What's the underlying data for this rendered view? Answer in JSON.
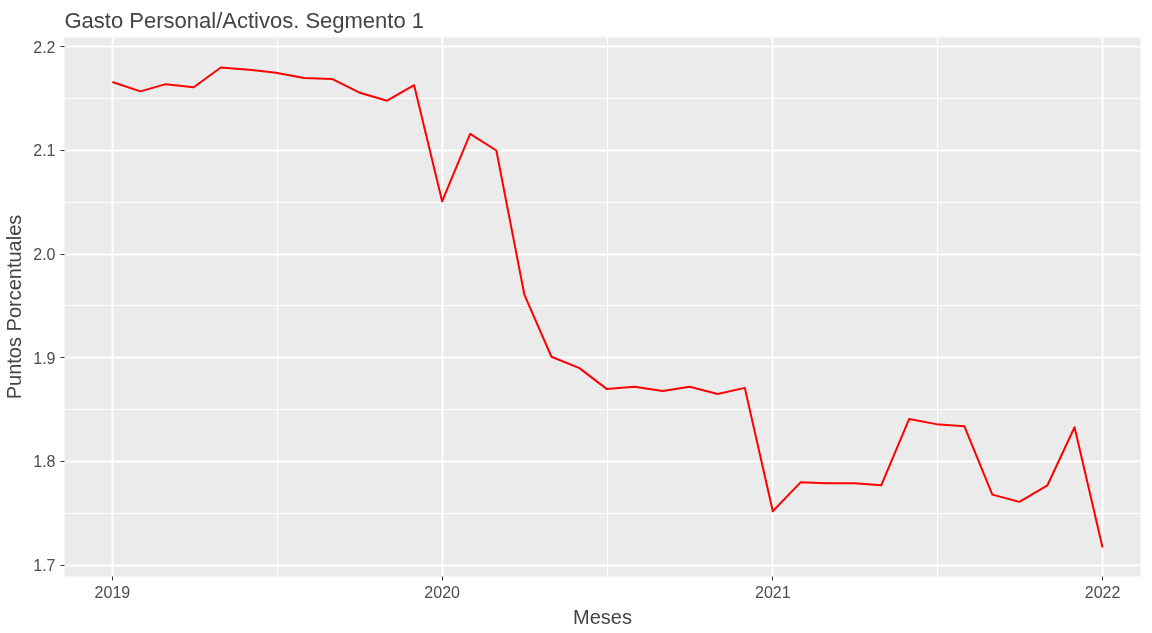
{
  "chart_data": {
    "type": "line",
    "title": "Gasto Personal/Activos. Segmento 1",
    "xlabel": "Meses",
    "ylabel": "Puntos Porcentuales",
    "x": [
      "2019-01",
      "2019-02",
      "2019-03",
      "2019-04",
      "2019-05",
      "2019-06",
      "2019-07",
      "2019-08",
      "2019-09",
      "2019-10",
      "2019-11",
      "2019-12",
      "2020-01",
      "2020-02",
      "2020-03",
      "2020-04",
      "2020-05",
      "2020-06",
      "2020-07",
      "2020-08",
      "2020-09",
      "2020-10",
      "2020-11",
      "2020-12",
      "2021-01",
      "2021-02",
      "2021-03",
      "2021-04",
      "2021-05",
      "2021-06",
      "2021-07",
      "2021-08",
      "2021-09",
      "2021-10",
      "2021-11",
      "2021-12",
      "2022-01"
    ],
    "series": [
      {
        "color": "#ff0000",
        "values": [
          2.166,
          2.157,
          2.164,
          2.161,
          2.18,
          2.178,
          2.175,
          2.17,
          2.169,
          2.156,
          2.148,
          2.163,
          2.051,
          2.116,
          2.1,
          1.961,
          1.901,
          1.89,
          1.87,
          1.872,
          1.868,
          1.872,
          1.865,
          1.871,
          1.752,
          1.78,
          1.779,
          1.779,
          1.777,
          1.841,
          1.836,
          1.834,
          1.768,
          1.761,
          1.777,
          1.833,
          1.717
        ]
      }
    ],
    "xlim": [
      "2018-11-09",
      "2022-02-12"
    ],
    "ylim": [
      1.689,
      2.209
    ],
    "xticks": [
      "2019",
      "2020",
      "2021",
      "2022"
    ],
    "yticks": [
      1.7,
      1.8,
      1.9,
      {
        "value": 2,
        "label": "2.0"
      },
      2.1,
      2.2
    ],
    "grid": true,
    "marker": "none",
    "line_style": "solid"
  }
}
